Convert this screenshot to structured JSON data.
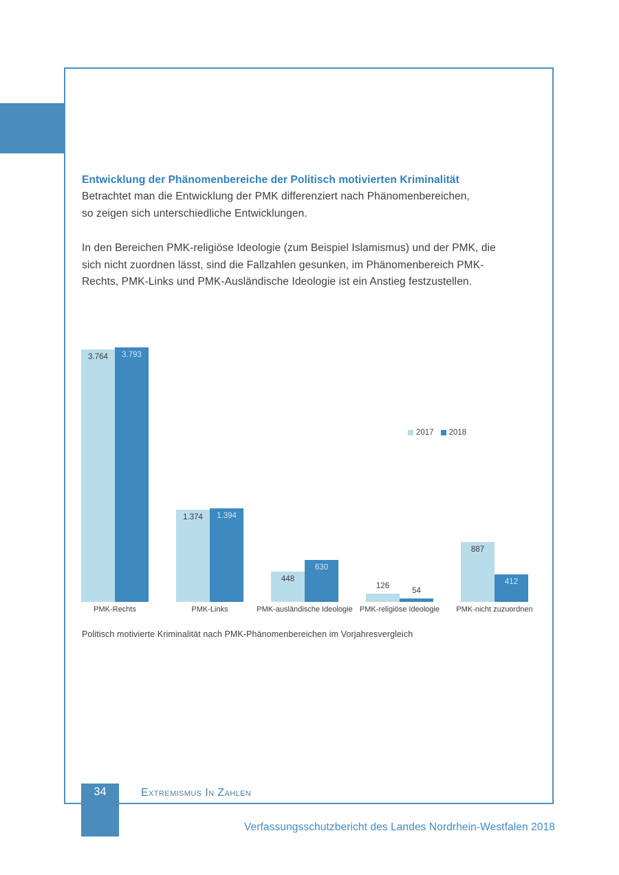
{
  "page": {
    "heading": "Entwicklung der Phänomenbereiche der Politisch motivierten Kriminalität",
    "paragraph1_lines": [
      "Betrachtet man die Entwicklung der PMK differenziert nach Phänomenbereichen,",
      "so zeigen sich unterschiedliche Entwicklungen."
    ],
    "paragraph2_lines": [
      "In den Bereichen PMK-religiöse Ideologie (zum Beispiel Islamismus) und der PMK, die",
      "sich nicht zuordnen lässt, sind die Fallzahlen gesunken, im Phänomenbereich PMK-",
      "Rechts, PMK-Links und PMK-Ausländische Ideologie ist ein Anstieg festzustellen."
    ],
    "caption": "Politisch motivierte Kriminalität nach PMK-Phänomenbereichen im Vorjahresvergleich"
  },
  "footer": {
    "page_number": "34",
    "section_title": "Extremismus In Zahlen",
    "report_title": "Verfassungsschutzbericht des Landes Nordrhein-Westfalen 2018"
  },
  "colors": {
    "accent_blue": "#4a90c4",
    "heading_blue": "#2e7fc0",
    "bar_2017": "#b9dcea",
    "bar_2018": "#3d89c0",
    "label_dark": "#3a3a3a",
    "label_light": "#d2e6f3"
  },
  "chart_data": {
    "type": "bar",
    "title": "Politisch motivierte Kriminalität nach PMK-Phänomenbereichen im Vorjahresvergleich",
    "categories": [
      "PMK-Rechts",
      "PMK-Links",
      "PMK-ausländische Ideologie",
      "PMK-religiöse Ideologie",
      "PMK-nicht zuzuordnen"
    ],
    "series": [
      {
        "name": "2017",
        "values": [
          3764,
          1374,
          448,
          126,
          887
        ],
        "color": "#b9dcea"
      },
      {
        "name": "2018",
        "values": [
          3793,
          1394,
          630,
          54,
          412
        ],
        "color": "#3d89c0"
      }
    ],
    "value_labels": [
      [
        "3.764",
        "1.374",
        "448",
        "126",
        "887"
      ],
      [
        "3.793",
        "1.394",
        "630",
        "54",
        "412"
      ]
    ],
    "xlabel": "",
    "ylabel": "",
    "ylim": [
      0,
      3900
    ],
    "grid": false,
    "legend_position": "middle-right"
  }
}
